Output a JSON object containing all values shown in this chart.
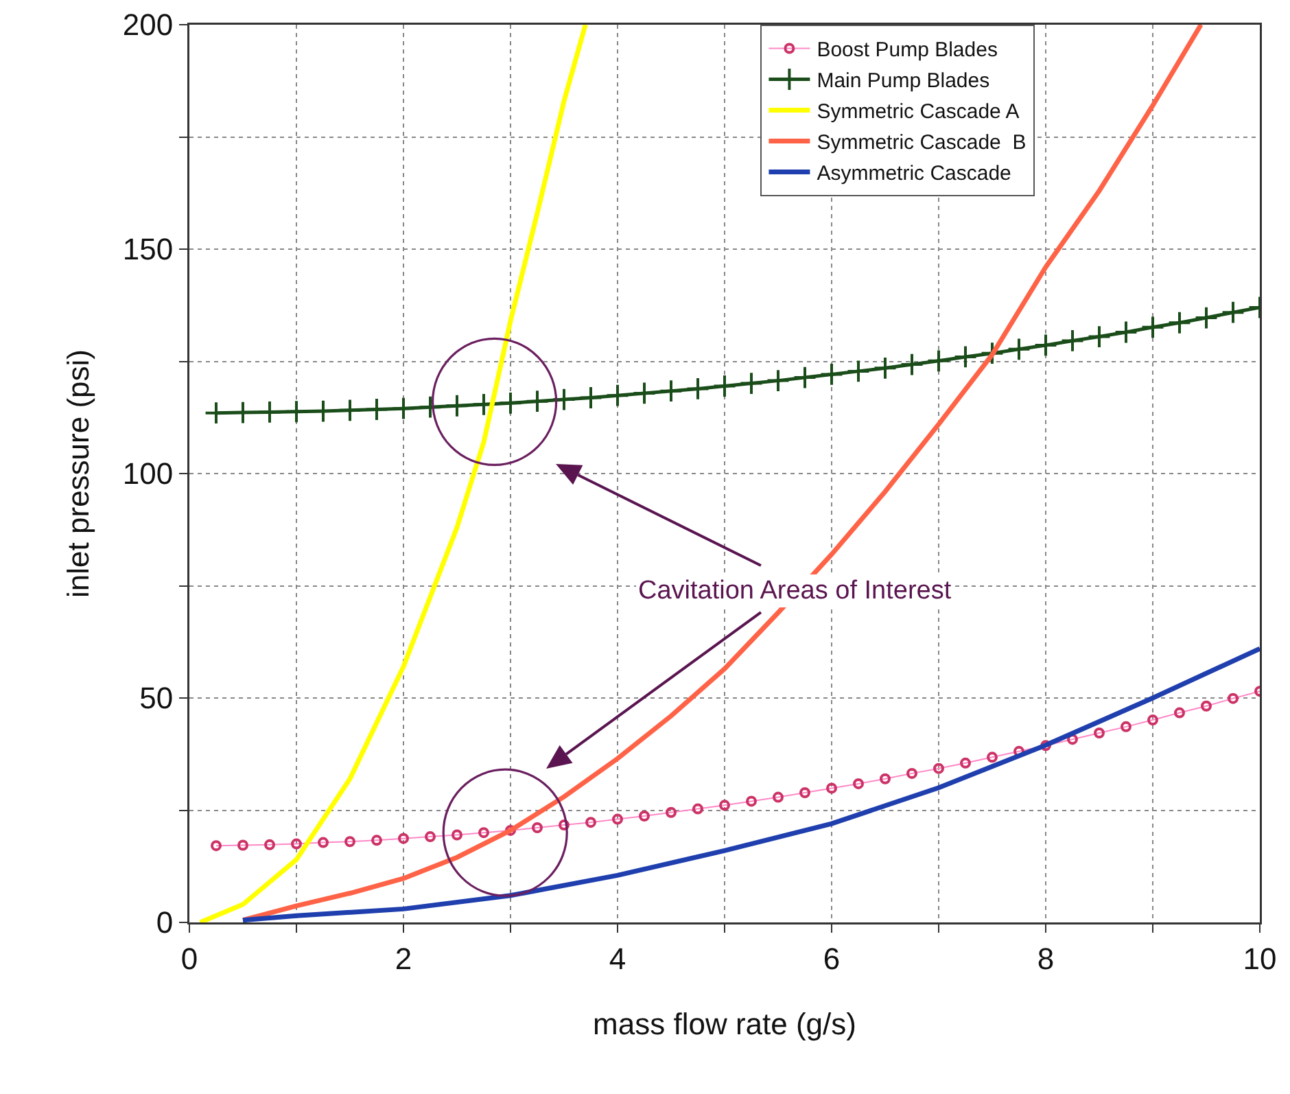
{
  "chart_data": {
    "type": "line",
    "xlabel": "mass flow rate (g/s)",
    "ylabel": "inlet pressure (psi)",
    "x": [
      0.25,
      0.5,
      0.75,
      1,
      1.25,
      1.5,
      1.75,
      2,
      2.25,
      2.5,
      2.75,
      3,
      3.25,
      3.5,
      3.75,
      4,
      4.25,
      4.5,
      4.75,
      5,
      5.25,
      5.5,
      5.75,
      6,
      6.25,
      6.5,
      6.75,
      7,
      7.25,
      7.5,
      7.75,
      8,
      8.25,
      8.5,
      8.75,
      9,
      9.25,
      9.5,
      9.75,
      10
    ],
    "series": [
      {
        "name": "Boost Pump Blades",
        "color": "#cc3366",
        "marker": "circle",
        "values": [
          17.1,
          17.2,
          17.3,
          17.5,
          17.8,
          18.0,
          18.3,
          18.7,
          19.1,
          19.5,
          20.0,
          20.5,
          21.1,
          21.7,
          22.3,
          23.0,
          23.7,
          24.5,
          25.3,
          26.1,
          27.0,
          27.9,
          28.9,
          29.9,
          30.9,
          32.0,
          33.2,
          34.3,
          35.5,
          36.8,
          38.1,
          39.4,
          40.8,
          42.2,
          43.6,
          45.1,
          46.7,
          48.2,
          49.9,
          51.5
        ]
      },
      {
        "name": "Main Pump Blades",
        "color": "#1a4d1a",
        "marker": "cross",
        "values": [
          113.5,
          113.6,
          113.7,
          113.8,
          113.9,
          114.1,
          114.3,
          114.5,
          114.8,
          115.1,
          115.4,
          115.7,
          116.1,
          116.5,
          116.9,
          117.4,
          117.9,
          118.4,
          118.9,
          119.5,
          120.1,
          120.7,
          121.4,
          122.1,
          122.8,
          123.5,
          124.3,
          125.1,
          126.0,
          126.8,
          127.7,
          128.6,
          129.6,
          130.5,
          131.5,
          132.6,
          133.6,
          134.7,
          135.9,
          137.0
        ]
      },
      {
        "name": "Symmetric Cascade A",
        "color": "#ffff00",
        "marker": "none",
        "x": [
          0.1,
          0.5,
          1,
          1.5,
          2,
          2.5,
          2.75,
          3,
          3.25,
          3.5,
          3.7
        ],
        "values": [
          0,
          4,
          14,
          32,
          57,
          88,
          107,
          134,
          158,
          183,
          200
        ]
      },
      {
        "name": "Symmetric Cascade  B",
        "color": "#ff6347",
        "marker": "none",
        "x": [
          0.5,
          1,
          1.5,
          2,
          2.5,
          3,
          3.5,
          4,
          4.5,
          5,
          5.5,
          6,
          6.5,
          7,
          7.5,
          8,
          8.5,
          9,
          9.45
        ],
        "values": [
          0.5,
          3.7,
          6.5,
          9.8,
          14.5,
          20.5,
          28,
          36.5,
          46,
          56.5,
          69,
          82,
          96,
          111,
          126.5,
          146,
          163,
          182,
          200
        ]
      },
      {
        "name": "Asymmetric Cascade",
        "color": "#1f3fae",
        "marker": "none",
        "x": [
          0.5,
          1,
          2,
          3,
          4,
          5,
          6,
          7,
          8,
          9,
          10
        ],
        "values": [
          0.5,
          1.5,
          3,
          6,
          10.5,
          16,
          22,
          30,
          39.5,
          50,
          61
        ]
      }
    ],
    "xlim": [
      0,
      10
    ],
    "xticks": [
      0,
      {
        "value": 1,
        "label": null
      },
      2,
      {
        "value": 3,
        "label": null
      },
      4,
      {
        "value": 5,
        "label": null
      },
      6,
      {
        "value": 7,
        "label": null
      },
      8,
      {
        "value": 9,
        "label": null
      },
      10
    ],
    "ylim": [
      0,
      200
    ],
    "yticks": [
      0,
      {
        "value": 25,
        "label": null
      },
      50,
      {
        "value": 75,
        "label": null
      },
      100,
      {
        "value": 125,
        "label": null
      },
      150,
      {
        "value": 175,
        "label": null
      },
      200
    ],
    "grid": true,
    "legend": "top right",
    "line_style": "solid",
    "annotations": [
      "Cavitation Areas of Interest"
    ]
  }
}
